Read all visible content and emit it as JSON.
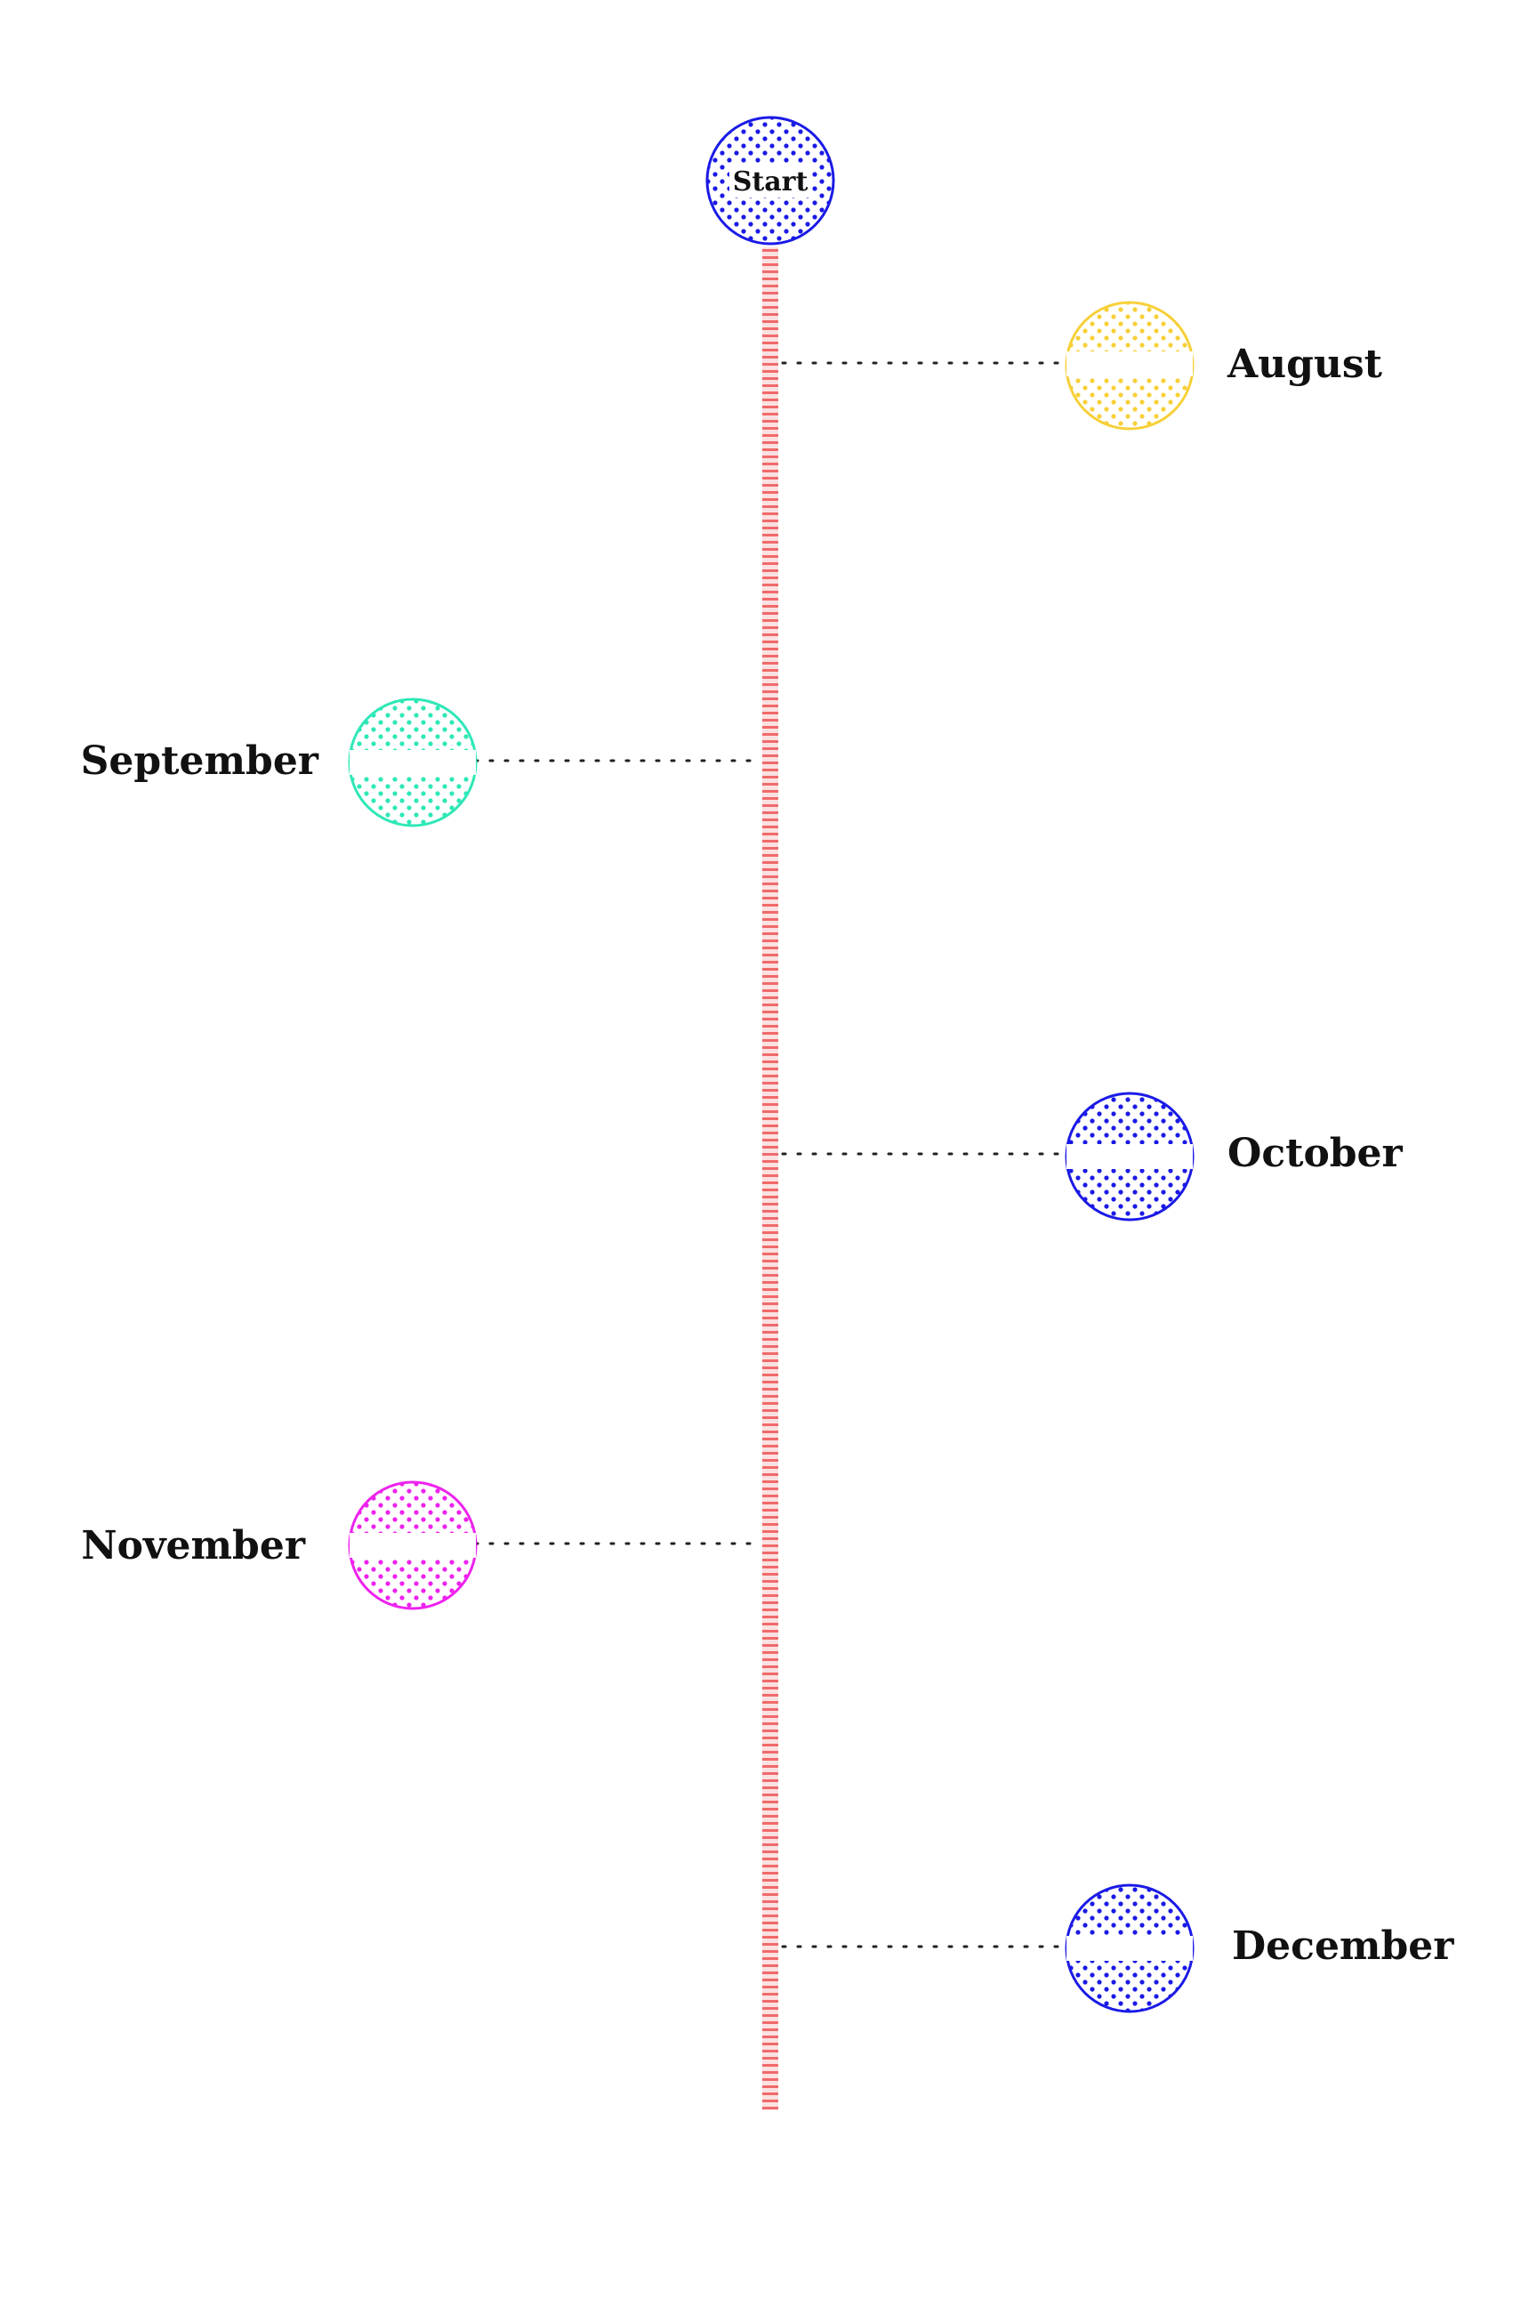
{
  "timeline": {
    "spine_color": "#f06a6a",
    "connector_color": "#222222",
    "start": {
      "label": "Start",
      "color": "#1a1ae6"
    },
    "events": [
      {
        "label": "August",
        "color": "#f7d038"
      },
      {
        "label": "September",
        "color": "#2ee8b6"
      },
      {
        "label": "October",
        "color": "#1a1ae6"
      },
      {
        "label": "November",
        "color": "#ee22ee"
      },
      {
        "label": "December",
        "color": "#1a1ae6"
      }
    ]
  }
}
